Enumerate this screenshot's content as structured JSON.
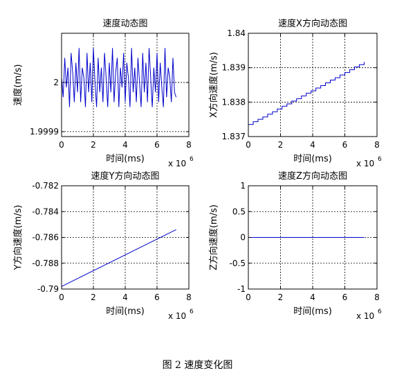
{
  "caption": "图 2 速度变化图",
  "chart_data": [
    {
      "type": "line",
      "title": "速度动态图",
      "xlabel": "时间(ms)",
      "ylabel": "速度(m/s)",
      "x_multiplier": "x 10",
      "x_exponent": "6",
      "xlim": [
        0,
        8
      ],
      "ylim": [
        1.99989,
        2.0001
      ],
      "xticks": [
        0,
        2,
        4,
        6,
        8
      ],
      "xtick_labels": [
        "0",
        "2",
        "4",
        "6",
        "8"
      ],
      "yticks": [
        1.9999,
        2.0
      ],
      "ytick_labels": [
        "1.9999",
        "2"
      ],
      "grid": true,
      "color": "#0000cc",
      "series": [
        {
          "x": [
            0,
            0.1,
            0.2,
            0.3,
            0.4,
            0.5,
            0.6,
            0.7,
            0.8,
            0.9,
            1.0,
            1.1,
            1.2,
            1.3,
            1.4,
            1.5,
            1.6,
            1.7,
            1.8,
            1.9,
            2.0,
            2.1,
            2.2,
            2.3,
            2.4,
            2.5,
            2.6,
            2.7,
            2.8,
            2.9,
            3.0,
            3.1,
            3.2,
            3.3,
            3.4,
            3.5,
            3.6,
            3.7,
            3.8,
            3.9,
            4.0,
            4.1,
            4.2,
            4.3,
            4.4,
            4.5,
            4.6,
            4.7,
            4.8,
            4.9,
            5.0,
            5.1,
            5.2,
            5.3,
            5.4,
            5.5,
            5.6,
            5.7,
            5.8,
            5.9,
            6.0,
            6.1,
            6.2,
            6.3,
            6.4,
            6.5,
            6.6,
            6.7,
            6.8,
            6.9,
            7.0,
            7.1,
            7.2
          ],
          "y": [
            2.00001,
            1.99997,
            2.00005,
            1.99999,
            2.00003,
            1.99995,
            2.00006,
            2.00002,
            1.99996,
            2.00004,
            1.99998,
            2.00007,
            1.99996,
            2.00003,
            2.00001,
            1.99995,
            2.00006,
            1.99998,
            2.00004,
            1.99996,
            2.00007,
            2.0,
            1.99995,
            2.00005,
            1.99998,
            2.00003,
            1.99996,
            2.00006,
            2.00001,
            1.99995,
            2.00004,
            1.99998,
            2.00007,
            1.99996,
            2.00002,
            2.00005,
            1.99995,
            2.00003,
            1.99999,
            2.00006,
            1.99996,
            2.00004,
            2.00001,
            1.99995,
            2.00007,
            1.99998,
            2.00003,
            1.99996,
            2.00005,
            2.0,
            1.99995,
            2.00006,
            1.99998,
            2.00004,
            1.99996,
            2.00007,
            2.00001,
            1.99995,
            2.00003,
            1.99998,
            2.00006,
            1.99996,
            2.00004,
            1.99999,
            1.99995,
            2.00007,
            1.99997,
            2.00003,
            2.00001,
            1.99996,
            2.00005,
            1.99998,
            1.99997
          ]
        }
      ]
    },
    {
      "type": "line",
      "title": "速度X方向动态图",
      "xlabel": "时间(ms)",
      "ylabel": "X方向速度(m/s)",
      "x_multiplier": "x 10",
      "x_exponent": "6",
      "xlim": [
        0,
        8
      ],
      "ylim": [
        1.837,
        1.84
      ],
      "xticks": [
        0,
        2,
        4,
        6,
        8
      ],
      "xtick_labels": [
        "0",
        "2",
        "4",
        "6",
        "8"
      ],
      "yticks": [
        1.837,
        1.838,
        1.839,
        1.84
      ],
      "ytick_labels": [
        "1.837",
        "1.838",
        "1.839",
        "1.84"
      ],
      "grid": true,
      "color": "#0000cc",
      "step": true,
      "series": [
        {
          "x": [
            0,
            0.3,
            0.6,
            0.9,
            1.2,
            1.5,
            1.8,
            2.1,
            2.4,
            2.7,
            3.0,
            3.3,
            3.6,
            3.9,
            4.2,
            4.5,
            4.8,
            5.1,
            5.4,
            5.7,
            6.0,
            6.3,
            6.6,
            6.9,
            7.2
          ],
          "y": [
            1.83735,
            1.83743,
            1.8375,
            1.83757,
            1.83765,
            1.83772,
            1.8378,
            1.83788,
            1.83795,
            1.83803,
            1.8381,
            1.83818,
            1.83826,
            1.83833,
            1.83841,
            1.83848,
            1.83856,
            1.83864,
            1.83871,
            1.83879,
            1.83886,
            1.83894,
            1.83902,
            1.83909,
            1.83917
          ]
        }
      ]
    },
    {
      "type": "line",
      "title": "速度Y方向动态图",
      "xlabel": "时间(ms)",
      "ylabel": "Y方向速度(m/s)",
      "x_multiplier": "x 10",
      "x_exponent": "6",
      "xlim": [
        0,
        8
      ],
      "ylim": [
        -0.79,
        -0.782
      ],
      "xticks": [
        0,
        2,
        4,
        6,
        8
      ],
      "xtick_labels": [
        "0",
        "2",
        "4",
        "6",
        "8"
      ],
      "yticks": [
        -0.79,
        -0.788,
        -0.786,
        -0.784,
        -0.782
      ],
      "ytick_labels": [
        "-0.79",
        "-0.788",
        "-0.786",
        "-0.784",
        "-0.782"
      ],
      "grid": true,
      "color": "#0000cc",
      "series": [
        {
          "x": [
            0,
            7.2
          ],
          "y": [
            -0.7898,
            -0.7854
          ]
        }
      ]
    },
    {
      "type": "line",
      "title": "速度Z方向动态图",
      "xlabel": "时间(ms)",
      "ylabel": "Z方向速度(m/s)",
      "x_multiplier": "x 10",
      "x_exponent": "6",
      "xlim": [
        0,
        8
      ],
      "ylim": [
        -1,
        1
      ],
      "xticks": [
        0,
        2,
        4,
        6,
        8
      ],
      "xtick_labels": [
        "0",
        "2",
        "4",
        "6",
        "8"
      ],
      "yticks": [
        -1,
        -0.5,
        0,
        0.5,
        1
      ],
      "ytick_labels": [
        "-1",
        "-0.5",
        "0",
        "0.5",
        "1"
      ],
      "grid": true,
      "color": "#0000cc",
      "series": [
        {
          "x": [
            0,
            7.2
          ],
          "y": [
            0,
            0
          ]
        }
      ]
    }
  ]
}
